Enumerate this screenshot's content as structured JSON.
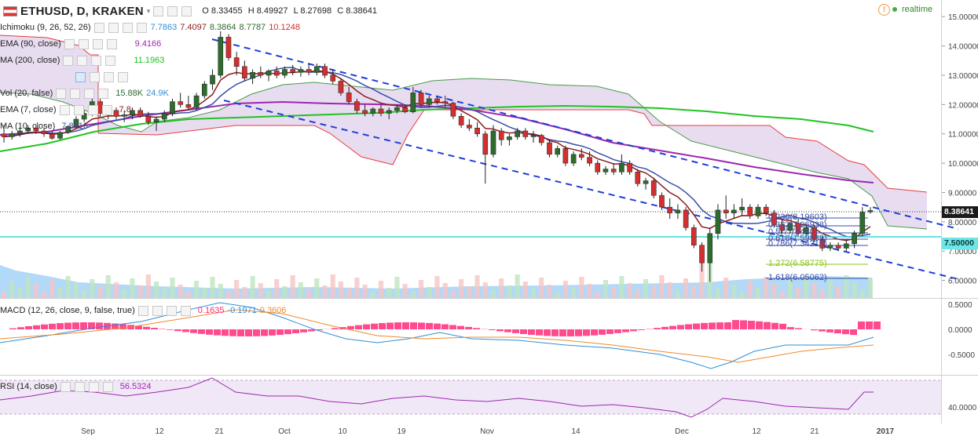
{
  "symbol": {
    "name": "ETHUSD, D, KRAKEN",
    "o_label": "O",
    "o": "8.33455",
    "h_label": "H",
    "h": "8.49927",
    "l_label": "L",
    "l": "8.27698",
    "c_label": "C",
    "c": "8.38641"
  },
  "header_right": {
    "realtime": "realtime"
  },
  "indicators": {
    "ichimoku": {
      "name": "Ichimoku (9, 26, 52, 26)",
      "values": [
        "7.7863",
        "7.4097",
        "8.3864",
        "8.7787",
        "10.1248"
      ]
    },
    "ema90": {
      "name": "EMA (90, close)",
      "value": "9.4166"
    },
    "ma200": {
      "name": "MA (200, close)",
      "value": "11.1963"
    },
    "vol": {
      "name": "Vol (20, false)",
      "value": "15.88K",
      "value2": "24.9K"
    },
    "ema7": {
      "name": "EMA (7, close)",
      "value": "7.8"
    },
    "ma10": {
      "name": "MA (10, close)",
      "value": "7.8716"
    },
    "macd": {
      "name": "MACD (12, 26, close, 9, false, true)",
      "values": [
        "0.1635",
        "-0.1971",
        "0.3606"
      ]
    },
    "rsi": {
      "name": "RSI (14, close)",
      "value": "56.5324"
    }
  },
  "colors": {
    "up": "#2e6b2e",
    "down": "#d32f2f",
    "ema90": "#9c27b0",
    "ma200": "#22c322",
    "ema7": "#8b1d1d",
    "ma10": "#3a4fa8",
    "cloud": "#d9c4e8",
    "cloud_edge_red": "#e83c3c",
    "cloud_edge_green": "#4a9a4a",
    "trend": "#1f3fd8",
    "macd_line": "#2f8fd8",
    "signal_line": "#f08a2a",
    "hist": "#ff2a7a",
    "rsi": "#9c27b0",
    "horizontal_cyan": "#3ad8d8",
    "volume_blue": "#9fcff5"
  },
  "fib_labels": [
    {
      "text": "0.236(8.19603)",
      "color": "#3a4fa8"
    },
    {
      "text": "0.382(7.96938)",
      "color": "#3a4fa8"
    },
    {
      "text": "0.5(7.78420)",
      "color": "#3a4fa8"
    },
    {
      "text": "0.618(7.59889)",
      "color": "#3a4fa8"
    },
    {
      "text": "0.786(7.34216)",
      "color": "#3a4fa8"
    },
    {
      "text": "1.272(6.58775)",
      "color": "#8cc41a"
    },
    {
      "text": "1.618(6.05062)",
      "color": "#3a4fa8"
    }
  ],
  "price_tags": {
    "last": "8.38641",
    "level": "7.50000"
  },
  "chart_data": {
    "type": "candlestick",
    "title": "ETHUSD, D, KRAKEN",
    "ylim": [
      5.4,
      15.3
    ],
    "yticks": [
      "15.00000",
      "14.00000",
      "13.00000",
      "12.00000",
      "11.00000",
      "10.00000",
      "9.00000",
      "8.00000",
      "7.00000",
      "6.00000"
    ],
    "xticks": [
      "Sep",
      "12",
      "21",
      "Oct",
      "10",
      "19",
      "Nov",
      "14",
      "Dec",
      "12",
      "21",
      "2017"
    ],
    "ohlc": [
      [
        11.0,
        11.3,
        10.7,
        10.9
      ],
      [
        10.9,
        11.1,
        10.8,
        11.0
      ],
      [
        11.0,
        11.2,
        10.9,
        11.1
      ],
      [
        11.1,
        11.3,
        11.0,
        11.2
      ],
      [
        11.2,
        11.3,
        11.0,
        11.1
      ],
      [
        11.1,
        11.2,
        10.9,
        11.0
      ],
      [
        11.0,
        11.1,
        10.8,
        10.85
      ],
      [
        10.85,
        11.1,
        10.8,
        11.05
      ],
      [
        11.05,
        11.3,
        11.0,
        11.25
      ],
      [
        11.25,
        11.6,
        11.2,
        11.5
      ],
      [
        11.5,
        11.8,
        11.4,
        11.7
      ],
      [
        11.7,
        12.3,
        11.6,
        12.1
      ],
      [
        12.1,
        12.2,
        11.6,
        11.7
      ],
      [
        11.7,
        11.9,
        11.5,
        11.8
      ],
      [
        11.8,
        11.9,
        11.5,
        11.6
      ],
      [
        11.6,
        11.8,
        11.4,
        11.65
      ],
      [
        11.65,
        11.9,
        11.5,
        11.8
      ],
      [
        11.8,
        11.9,
        11.55,
        11.6
      ],
      [
        11.6,
        11.75,
        11.3,
        11.4
      ],
      [
        11.4,
        11.6,
        11.1,
        11.5
      ],
      [
        11.5,
        11.8,
        11.4,
        11.7
      ],
      [
        11.7,
        12.2,
        11.6,
        12.1
      ],
      [
        12.1,
        12.4,
        11.9,
        12.0
      ],
      [
        12.0,
        12.3,
        11.8,
        11.9
      ],
      [
        11.9,
        12.4,
        11.8,
        12.3
      ],
      [
        12.3,
        12.8,
        12.2,
        12.7
      ],
      [
        12.7,
        13.2,
        12.5,
        13.0
      ],
      [
        13.0,
        14.5,
        12.9,
        14.3
      ],
      [
        14.3,
        14.4,
        13.5,
        13.6
      ],
      [
        13.6,
        13.8,
        13.0,
        13.3
      ],
      [
        13.3,
        13.5,
        12.8,
        12.9
      ],
      [
        12.9,
        13.2,
        12.7,
        13.1
      ],
      [
        13.1,
        13.3,
        12.9,
        13.0
      ],
      [
        13.0,
        13.2,
        12.8,
        13.15
      ],
      [
        13.15,
        13.3,
        12.9,
        13.0
      ],
      [
        13.0,
        13.3,
        12.9,
        13.2
      ],
      [
        13.2,
        13.35,
        13.0,
        13.1
      ],
      [
        13.1,
        13.3,
        12.95,
        13.2
      ],
      [
        13.2,
        13.4,
        13.0,
        13.1
      ],
      [
        13.1,
        13.4,
        13.0,
        13.3
      ],
      [
        13.3,
        13.4,
        12.9,
        13.0
      ],
      [
        13.0,
        13.2,
        12.7,
        12.8
      ],
      [
        12.8,
        12.9,
        12.3,
        12.4
      ],
      [
        12.4,
        12.6,
        12.0,
        12.1
      ],
      [
        12.1,
        12.2,
        11.7,
        11.8
      ],
      [
        11.8,
        12.0,
        11.6,
        11.7
      ],
      [
        11.7,
        11.9,
        11.6,
        11.85
      ],
      [
        11.85,
        12.0,
        11.6,
        11.7
      ],
      [
        11.7,
        11.9,
        11.5,
        11.8
      ],
      [
        11.8,
        12.0,
        11.7,
        11.9
      ],
      [
        11.9,
        12.0,
        11.7,
        11.75
      ],
      [
        11.75,
        12.6,
        11.7,
        12.4
      ],
      [
        12.4,
        12.5,
        11.9,
        12.0
      ],
      [
        12.0,
        12.3,
        11.9,
        12.2
      ],
      [
        12.2,
        12.3,
        12.0,
        12.1
      ],
      [
        12.1,
        12.3,
        11.9,
        12.05
      ],
      [
        12.05,
        12.1,
        11.5,
        11.6
      ],
      [
        11.6,
        11.7,
        11.2,
        11.3
      ],
      [
        11.3,
        11.5,
        11.1,
        11.2
      ],
      [
        11.2,
        11.4,
        10.9,
        11.0
      ],
      [
        11.0,
        11.1,
        9.3,
        10.3
      ],
      [
        10.3,
        11.3,
        10.2,
        11.1
      ],
      [
        11.1,
        11.2,
        10.6,
        10.8
      ],
      [
        10.8,
        11.0,
        10.6,
        10.9
      ],
      [
        10.9,
        11.2,
        10.8,
        11.1
      ],
      [
        11.1,
        11.2,
        10.8,
        10.9
      ],
      [
        10.9,
        11.1,
        10.7,
        10.95
      ],
      [
        10.95,
        11.0,
        10.6,
        10.7
      ],
      [
        10.7,
        10.8,
        10.2,
        10.3
      ],
      [
        10.3,
        10.6,
        10.2,
        10.5
      ],
      [
        10.5,
        10.6,
        9.9,
        10.0
      ],
      [
        10.0,
        10.4,
        9.9,
        10.3
      ],
      [
        10.3,
        10.5,
        10.1,
        10.2
      ],
      [
        10.2,
        10.4,
        9.9,
        10.0
      ],
      [
        10.0,
        10.1,
        9.6,
        9.7
      ],
      [
        9.7,
        9.9,
        9.6,
        9.8
      ],
      [
        9.8,
        10.0,
        9.6,
        9.7
      ],
      [
        9.7,
        10.3,
        9.6,
        10.0
      ],
      [
        10.0,
        10.1,
        9.6,
        9.7
      ],
      [
        9.7,
        9.8,
        9.2,
        9.3
      ],
      [
        9.3,
        9.5,
        9.1,
        9.4
      ],
      [
        9.4,
        9.5,
        8.8,
        8.9
      ],
      [
        8.9,
        9.0,
        8.4,
        8.5
      ],
      [
        8.5,
        8.8,
        8.1,
        8.3
      ],
      [
        8.3,
        8.6,
        8.1,
        8.4
      ],
      [
        8.4,
        8.5,
        7.7,
        7.8
      ],
      [
        7.8,
        7.9,
        7.1,
        7.2
      ],
      [
        7.2,
        7.3,
        6.3,
        6.6
      ],
      [
        6.6,
        7.8,
        5.95,
        7.6
      ],
      [
        7.6,
        8.6,
        7.4,
        8.4
      ],
      [
        8.4,
        8.9,
        8.1,
        8.3
      ],
      [
        8.3,
        8.6,
        8.1,
        8.4
      ],
      [
        8.4,
        8.8,
        8.2,
        8.5
      ],
      [
        8.5,
        8.6,
        8.1,
        8.2
      ],
      [
        8.2,
        8.6,
        8.1,
        8.5
      ],
      [
        8.5,
        8.6,
        8.2,
        8.3
      ],
      [
        8.3,
        8.4,
        7.8,
        7.9
      ],
      [
        7.9,
        8.1,
        7.6,
        7.7
      ],
      [
        7.7,
        8.0,
        7.6,
        7.95
      ],
      [
        7.95,
        8.1,
        7.5,
        7.6
      ],
      [
        7.6,
        7.9,
        7.5,
        7.8
      ],
      [
        7.8,
        7.9,
        7.3,
        7.4
      ],
      [
        7.4,
        7.5,
        7.0,
        7.1
      ],
      [
        7.1,
        7.3,
        7.0,
        7.2
      ],
      [
        7.2,
        7.3,
        7.0,
        7.1
      ],
      [
        7.1,
        7.4,
        7.0,
        7.25
      ],
      [
        7.25,
        7.7,
        7.1,
        7.6
      ],
      [
        7.6,
        8.5,
        7.5,
        8.33
      ],
      [
        8.33455,
        8.49927,
        8.27698,
        8.38641
      ]
    ]
  }
}
